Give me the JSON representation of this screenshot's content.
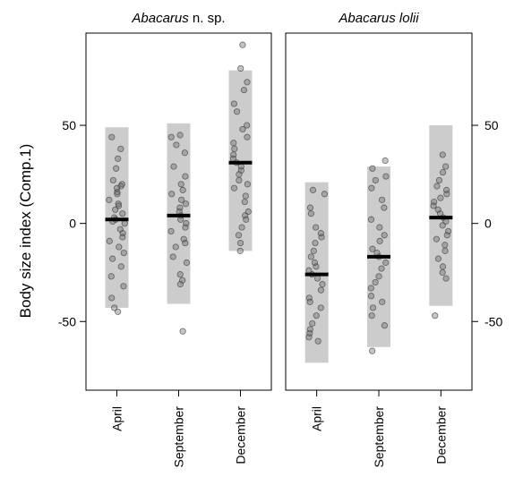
{
  "chart_data": {
    "type": "scatter",
    "ylabel": "Body size index (Comp.1)",
    "ylim": [
      -85,
      97
    ],
    "yticks": [
      -50,
      0,
      50
    ],
    "categories": [
      "April",
      "September",
      "December"
    ],
    "panels": [
      {
        "title_species": "Abacarus",
        "title_suffix": " n. sp.",
        "groups": [
          {
            "category": "April",
            "mean": 2,
            "range": [
              -43,
              49
            ],
            "points": [
              44,
              38,
              33,
              28,
              22,
              20,
              19,
              18,
              16,
              15,
              12,
              10,
              9,
              7,
              5,
              3,
              2,
              1,
              0,
              -3,
              -5,
              -7,
              -9,
              -12,
              -15,
              -18,
              -22,
              -27,
              -32,
              -38,
              -43,
              -45
            ]
          },
          {
            "category": "September",
            "mean": 4,
            "range": [
              -41,
              51
            ],
            "points": [
              45,
              44,
              40,
              36,
              29,
              24,
              20,
              17,
              15,
              12,
              10,
              8,
              6,
              4,
              2,
              0,
              -2,
              -4,
              -8,
              -10,
              -12,
              -17,
              -20,
              -26,
              -29,
              -31,
              -55
            ]
          },
          {
            "category": "December",
            "mean": 31,
            "range": [
              -14,
              78
            ],
            "points": [
              91,
              79,
              72,
              68,
              61,
              57,
              50,
              48,
              44,
              41,
              38,
              35,
              33,
              31,
              29,
              27,
              25,
              22,
              20,
              18,
              14,
              11,
              6,
              4,
              2,
              -2,
              -6,
              -10,
              -14
            ]
          }
        ]
      },
      {
        "title_species": "Abacarus lolii",
        "title_suffix": "",
        "groups": [
          {
            "category": "April",
            "mean": -26,
            "range": [
              -71,
              21
            ],
            "points": [
              17,
              15,
              8,
              -2,
              -7,
              -10,
              -14,
              -17,
              -20,
              -22,
              -24,
              -26,
              -28,
              -31,
              -34,
              -38,
              -40,
              -43,
              -47,
              -51,
              -54,
              -56,
              -58,
              -60,
              5,
              -5
            ]
          },
          {
            "category": "September",
            "mean": -17,
            "range": [
              -63,
              29
            ],
            "points": [
              32,
              28,
              24,
              22,
              18,
              12,
              8,
              2,
              -2,
              -6,
              -9,
              -13,
              -15,
              -17,
              -20,
              -23,
              -27,
              -30,
              -33,
              -37,
              -40,
              -43,
              -47,
              -52,
              -65
            ]
          },
          {
            "category": "December",
            "mean": 3,
            "range": [
              -42,
              50
            ],
            "points": [
              35,
              29,
              26,
              22,
              19,
              17,
              15,
              13,
              11,
              9,
              7,
              5,
              3,
              1,
              -1,
              -4,
              -6,
              -8,
              -11,
              -14,
              -18,
              -22,
              -25,
              -28,
              -47
            ]
          }
        ]
      }
    ]
  }
}
